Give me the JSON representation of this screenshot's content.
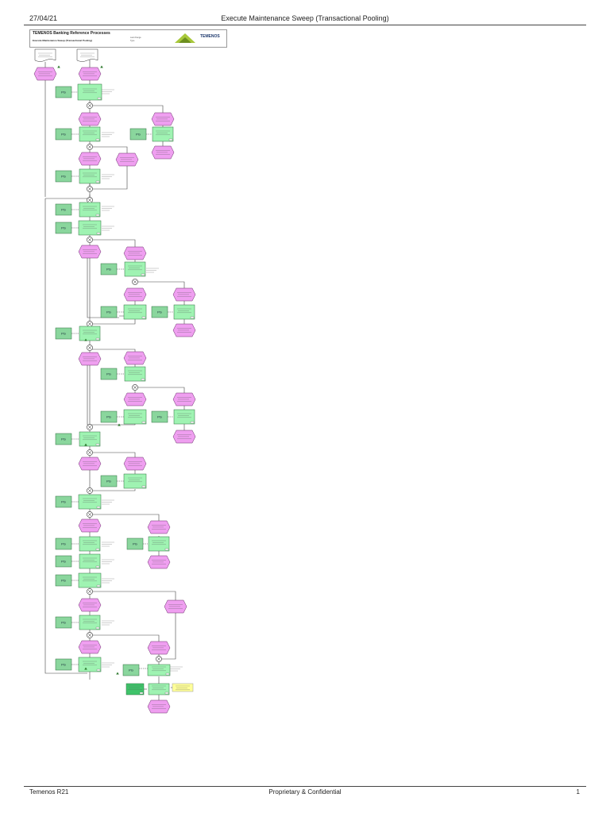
{
  "header": {
    "date": "27/04/21",
    "title": "Execute Maintenance Sweep (Transactional Pooling)"
  },
  "footer": {
    "left": "Temenos R21",
    "center": "Proprietary & Confidential",
    "right": "1"
  },
  "banner": {
    "title": "TEMENOS Banking Reference Processes",
    "subtitle": "Execute Maintenance Sweep (Transactional Pooling)",
    "last_change_label": "Last change",
    "type_label": "Type",
    "logo_text": "TEMENOS"
  },
  "diagram": {
    "colors": {
      "event": "#ef9ff0",
      "function": "#9ff3b2",
      "role": "#8ad69d",
      "dark_function": "#3fc46a",
      "note": "#ffff99",
      "line": "#444444"
    },
    "role_label": "PG",
    "node_ids": [
      "Ev1",
      "Fn1"
    ]
  }
}
